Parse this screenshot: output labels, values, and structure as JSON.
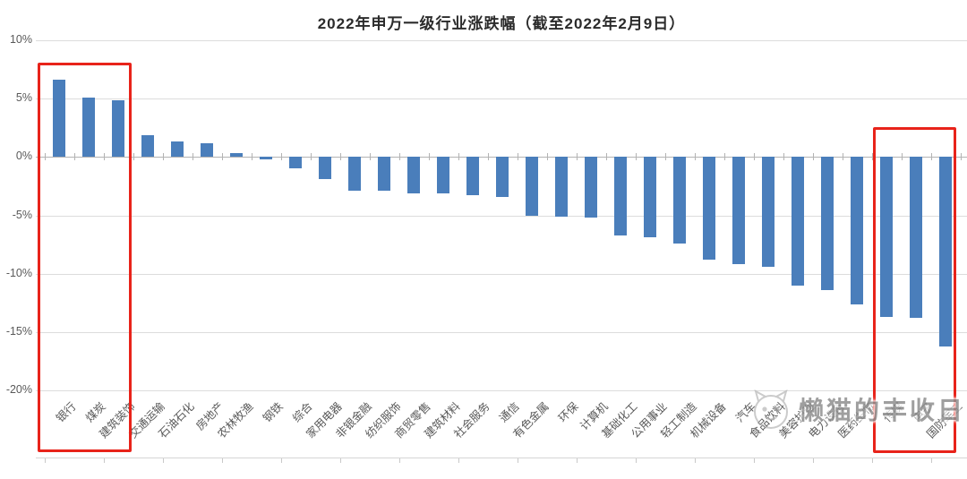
{
  "watermark": {
    "text": "懒猫的丰收日",
    "icon": "cat-doodle-icon"
  },
  "colors": {
    "bar": "#4a7ebb",
    "highlight_box": "#e8231a",
    "grid": "#dcdcdc",
    "zero_axis": "#b3b3b3",
    "text": "#595959"
  },
  "chart_data": {
    "type": "bar",
    "title": "2022年申万一级行业涨跌幅（截至2022年2月9日）",
    "categories": [
      "银行",
      "煤炭",
      "建筑装饰",
      "交通运输",
      "石油石化",
      "房地产",
      "农林牧渔",
      "钢铁",
      "综合",
      "家用电器",
      "非银金融",
      "纺织服饰",
      "商贸零售",
      "建筑材料",
      "社会服务",
      "通信",
      "有色金属",
      "环保",
      "计算机",
      "基础化工",
      "公用事业",
      "轻工制造",
      "机械设备",
      "汽车",
      "食品饮料",
      "美容护理",
      "电力设备",
      "医药生物",
      "传媒",
      "电子",
      "国防军工"
    ],
    "values": [
      6.6,
      5.1,
      4.9,
      1.9,
      1.3,
      1.2,
      0.3,
      -0.2,
      -1.0,
      -1.9,
      -2.9,
      -2.9,
      -3.1,
      -3.1,
      -3.3,
      -3.4,
      -5.0,
      -5.1,
      -5.2,
      -6.7,
      -6.9,
      -7.4,
      -8.8,
      -9.2,
      -9.4,
      -11.0,
      -11.4,
      -12.6,
      -13.7,
      -13.8,
      -16.2
    ],
    "ylabel": "",
    "xlabel": "",
    "yticks": [
      "10%",
      "5%",
      "0%",
      "-5%",
      "-10%",
      "-15%",
      "-20%"
    ],
    "ytick_values": [
      10,
      5,
      0,
      -5,
      -10,
      -15,
      -20
    ],
    "ylim": [
      -20,
      10
    ],
    "grid": true,
    "legend": "none",
    "bar_color": "#4a7ebb",
    "highlighted_groups": [
      {
        "categories": [
          "银行",
          "煤炭",
          "建筑装饰"
        ]
      },
      {
        "categories": [
          "传媒",
          "电子",
          "国防军工"
        ]
      }
    ]
  }
}
